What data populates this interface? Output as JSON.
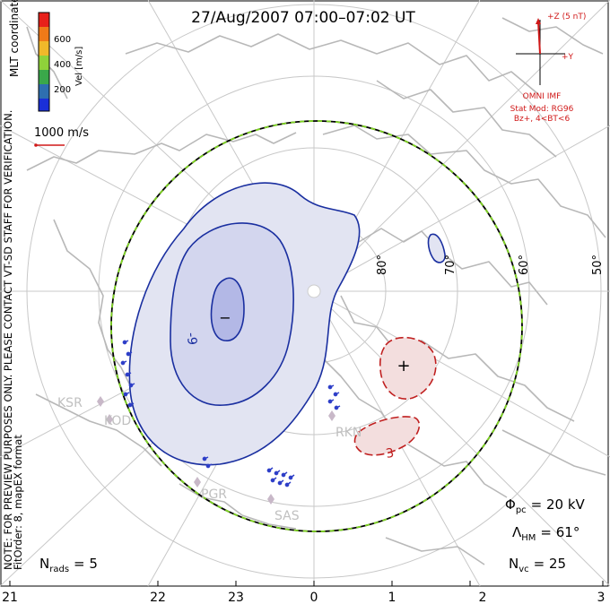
{
  "title": "27/Aug/2007 07:00–07:02 UT",
  "colorbar": {
    "ticks": [
      "600",
      "400",
      "200"
    ],
    "label": "Vel [m/s]",
    "colors": [
      "#e8201a",
      "#f07a18",
      "#f0b82a",
      "#8fd23a",
      "#3aa84a",
      "#2e6fb0",
      "#1a2fd8"
    ]
  },
  "coords_label": "MLT coordinates",
  "velocity_scale": "1000 m/s",
  "side_note_line1": "NOTE: FOR PREVIEW PURPOSES ONLY. PLEASE CONTACT VT-SD STAFF FOR VERIFICATION.",
  "side_note_line2": "FitOrder: 8, mapEX format",
  "imf": {
    "z_label": "+Z (5 nT)",
    "y_label": "+Y",
    "source": "OMNI IMF",
    "model": "Stat Mod: RG96",
    "condition": "Bz+, 4<BT<6"
  },
  "latitudes": [
    "80°",
    "70°",
    "60°",
    "50°"
  ],
  "contour_labels": {
    "min_sign": "−",
    "max_sign": "+",
    "neg_label": "-9",
    "pos_label": "3"
  },
  "radars": [
    "KSR",
    "KOD",
    "PGR",
    "SAS",
    "RKN"
  ],
  "stats": {
    "phi_symbol": "Φ",
    "phi_sub": "pc",
    "phi_value": "= 20 kV",
    "lambda_symbol": "Λ",
    "lambda_sub": "HM",
    "lambda_value": "= 61°",
    "nvc_symbol": "N",
    "nvc_sub": "vc",
    "nvc_value": "= 25",
    "nrads_symbol": "N",
    "nrads_sub": "rads",
    "nrads_value": "= 5"
  },
  "mlt_ticks": [
    "21",
    "22",
    "23",
    "0",
    "1",
    "2",
    "3"
  ],
  "colors": {
    "negative": "#1a2fa0",
    "positive": "#c02020",
    "grid": "#c8c8c8",
    "coast": "#b8b8b8",
    "imf": "#d01818",
    "boundary_green": "#7ed321"
  }
}
